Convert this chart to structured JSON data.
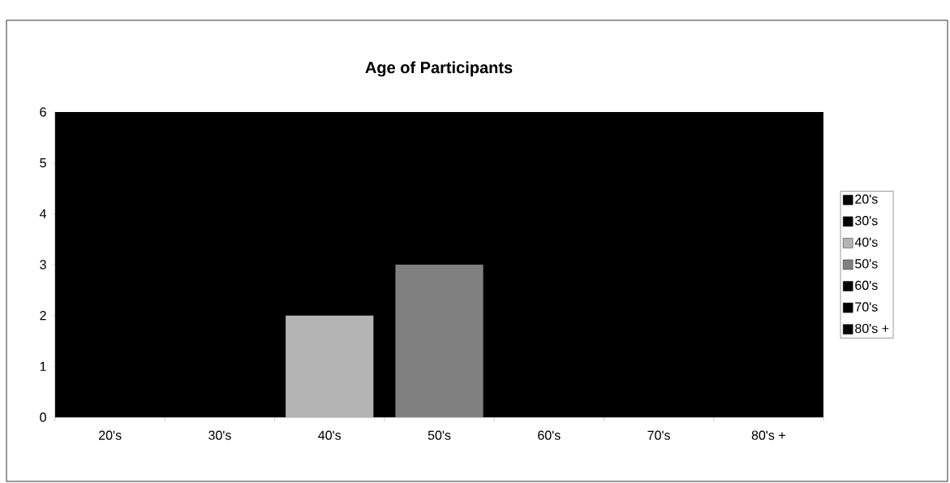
{
  "chart_data": {
    "type": "bar",
    "title": "Age of Participants",
    "categories": [
      "20's",
      "30's",
      "40's",
      "50's",
      "60's",
      "70's",
      "80's +"
    ],
    "series": [
      {
        "name": "20's",
        "color": "#000000",
        "values": [
          null,
          null,
          null,
          null,
          null,
          null,
          null
        ]
      },
      {
        "name": "30's",
        "color": "#000000",
        "values": [
          null,
          null,
          null,
          null,
          null,
          null,
          null
        ]
      },
      {
        "name": "40's",
        "color": "#b4b4b4",
        "values": [
          null,
          null,
          2,
          null,
          null,
          null,
          null
        ]
      },
      {
        "name": "50's",
        "color": "#808080",
        "values": [
          null,
          null,
          null,
          3,
          null,
          null,
          null
        ]
      },
      {
        "name": "60's",
        "color": "#000000",
        "values": [
          null,
          null,
          null,
          null,
          null,
          null,
          null
        ]
      },
      {
        "name": "70's",
        "color": "#000000",
        "values": [
          null,
          null,
          null,
          null,
          null,
          null,
          null
        ]
      },
      {
        "name": "80's +",
        "color": "#000000",
        "values": [
          null,
          null,
          null,
          null,
          null,
          null,
          null
        ]
      }
    ],
    "ylim": [
      0,
      6
    ],
    "yticks": [
      0,
      1,
      2,
      3,
      4,
      5,
      6
    ],
    "legend": "right"
  }
}
